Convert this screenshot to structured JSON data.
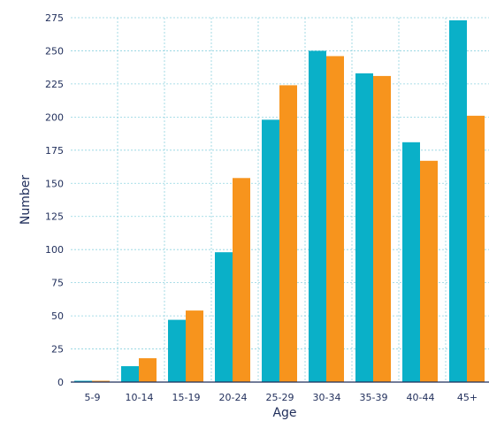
{
  "chart_data": {
    "type": "bar",
    "title": "",
    "xlabel": "Age",
    "ylabel": "Number",
    "categories": [
      "5-9",
      "10-14",
      "15-19",
      "20-24",
      "25-29",
      "30-34",
      "35-39",
      "40-44",
      "45+"
    ],
    "series": [
      {
        "color": "#0ab0c8",
        "values": [
          1,
          12,
          47,
          98,
          198,
          250,
          233,
          181,
          273
        ]
      },
      {
        "color": "#f7941d",
        "values": [
          1,
          18,
          54,
          154,
          224,
          246,
          231,
          167,
          201
        ]
      }
    ],
    "ylim": [
      0,
      275
    ],
    "yticks": [
      0,
      25,
      50,
      75,
      100,
      125,
      150,
      175,
      200,
      225,
      250,
      275
    ],
    "grid": true
  }
}
